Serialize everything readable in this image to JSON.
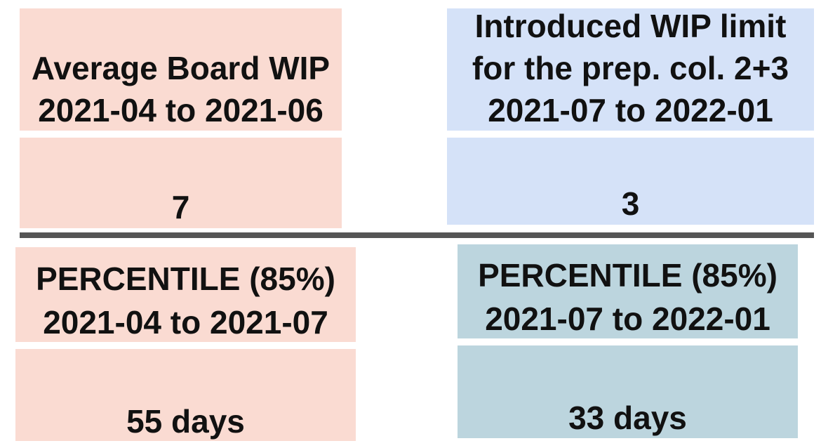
{
  "panels": [
    {
      "title": [
        "Average Board WIP",
        "2021-04 to 2021-06"
      ],
      "value": 7
    },
    {
      "title": [
        "Introduced WIP limit",
        "for the prep. col. 2+3",
        "2021-07 to 2022-01"
      ],
      "value": 3
    },
    {
      "title": [
        "PERCENTILE (85%)",
        "2021-04 to 2021-07"
      ],
      "value": "55 days"
    },
    {
      "title": [
        "PERCENTILE (85%)",
        "2021-07 to 2022-01"
      ],
      "value": "33 days"
    }
  ]
}
